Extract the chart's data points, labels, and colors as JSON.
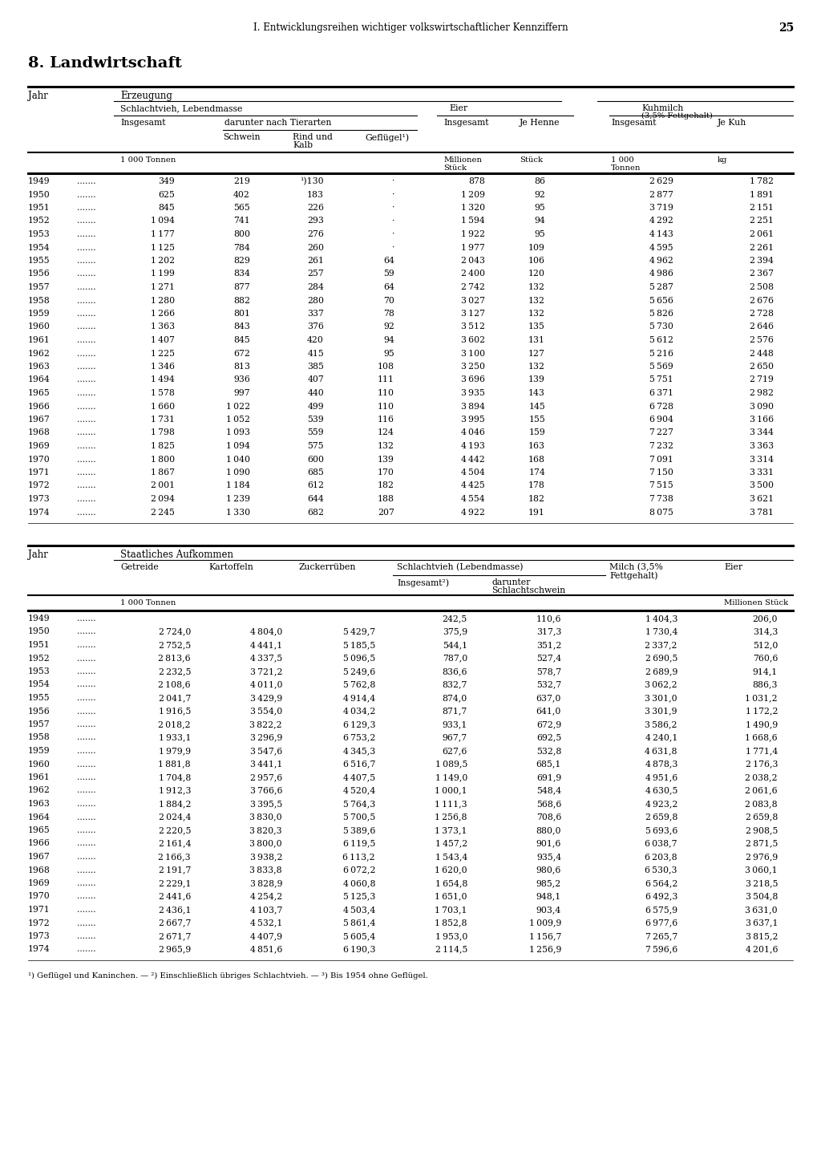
{
  "page_header": "I. Entwicklungsreihen wichtiger volkswirtschaftlicher Kennziffern",
  "page_number": "25",
  "section_title": "8. Landwirtschaft",
  "table1_data": [
    [
      1949,
      349,
      219,
      "¹)130",
      "·",
      878,
      86,
      2629,
      1782
    ],
    [
      1950,
      625,
      402,
      183,
      "·",
      1209,
      92,
      2877,
      1891
    ],
    [
      1951,
      845,
      565,
      226,
      "·",
      1320,
      95,
      3719,
      2151
    ],
    [
      1952,
      1094,
      741,
      293,
      "·",
      1594,
      94,
      4292,
      2251
    ],
    [
      1953,
      1177,
      800,
      276,
      "·",
      1922,
      95,
      4143,
      2061
    ],
    [
      1954,
      1125,
      784,
      260,
      "·",
      1977,
      109,
      4595,
      2261
    ],
    [
      1955,
      1202,
      829,
      261,
      64,
      2043,
      106,
      4962,
      2394
    ],
    [
      1956,
      1199,
      834,
      257,
      59,
      2400,
      120,
      4986,
      2367
    ],
    [
      1957,
      1271,
      877,
      284,
      64,
      2742,
      132,
      5287,
      2508
    ],
    [
      1958,
      1280,
      882,
      280,
      70,
      3027,
      132,
      5656,
      2676
    ],
    [
      1959,
      1266,
      801,
      337,
      78,
      3127,
      132,
      5826,
      2728
    ],
    [
      1960,
      1363,
      843,
      376,
      92,
      3512,
      135,
      5730,
      2646
    ],
    [
      1961,
      1407,
      845,
      420,
      94,
      3602,
      131,
      5612,
      2576
    ],
    [
      1962,
      1225,
      672,
      415,
      95,
      3100,
      127,
      5216,
      2448
    ],
    [
      1963,
      1346,
      813,
      385,
      108,
      3250,
      132,
      5569,
      2650
    ],
    [
      1964,
      1494,
      936,
      407,
      111,
      3696,
      139,
      5751,
      2719
    ],
    [
      1965,
      1578,
      997,
      440,
      110,
      3935,
      143,
      6371,
      2982
    ],
    [
      1966,
      1660,
      1022,
      499,
      110,
      3894,
      145,
      6728,
      3090
    ],
    [
      1967,
      1731,
      1052,
      539,
      116,
      3995,
      155,
      6904,
      3166
    ],
    [
      1968,
      1798,
      1093,
      559,
      124,
      4046,
      159,
      7227,
      3344
    ],
    [
      1969,
      1825,
      1094,
      575,
      132,
      4193,
      163,
      7232,
      3363
    ],
    [
      1970,
      1800,
      1040,
      600,
      139,
      4442,
      168,
      7091,
      3314
    ],
    [
      1971,
      1867,
      1090,
      685,
      170,
      4504,
      174,
      7150,
      3331
    ],
    [
      1972,
      2001,
      1184,
      612,
      182,
      4425,
      178,
      7515,
      3500
    ],
    [
      1973,
      2094,
      1239,
      644,
      188,
      4554,
      182,
      7738,
      3621
    ],
    [
      1974,
      2245,
      1330,
      682,
      207,
      4922,
      191,
      8075,
      3781
    ]
  ],
  "table2_data": [
    [
      1949,
      "",
      "",
      "",
      242.5,
      110.6,
      1404.3,
      206.0
    ],
    [
      1950,
      2724.0,
      4804.0,
      5429.7,
      375.9,
      317.3,
      1730.4,
      314.3
    ],
    [
      1951,
      2752.5,
      4441.1,
      5185.5,
      544.1,
      351.2,
      2337.2,
      512.0
    ],
    [
      1952,
      2813.6,
      4337.5,
      5096.5,
      787.0,
      527.4,
      2690.5,
      760.6
    ],
    [
      1953,
      2232.5,
      3721.2,
      5249.6,
      836.6,
      578.7,
      2689.9,
      914.1
    ],
    [
      1954,
      2108.6,
      4011.0,
      5762.8,
      832.7,
      532.7,
      3062.2,
      886.3
    ],
    [
      1955,
      2041.7,
      3429.9,
      4914.4,
      874.0,
      637.0,
      3301.0,
      1031.2
    ],
    [
      1956,
      1916.5,
      3554.0,
      4034.2,
      871.7,
      641.0,
      3301.9,
      1172.2
    ],
    [
      1957,
      2018.2,
      3822.2,
      6129.3,
      933.1,
      672.9,
      3586.2,
      1490.9
    ],
    [
      1958,
      1933.1,
      3296.9,
      6753.2,
      967.7,
      692.5,
      4240.1,
      1668.6
    ],
    [
      1959,
      1979.9,
      3547.6,
      4345.3,
      627.6,
      532.8,
      4631.8,
      1771.4
    ],
    [
      1960,
      1881.8,
      3441.1,
      6516.7,
      1089.5,
      685.1,
      4878.3,
      2176.3
    ],
    [
      1961,
      1704.8,
      2957.6,
      4407.5,
      1149.0,
      691.9,
      4951.6,
      2038.2
    ],
    [
      1962,
      1912.3,
      3766.6,
      4520.4,
      1000.1,
      548.4,
      4630.5,
      2061.6
    ],
    [
      1963,
      1884.2,
      3395.5,
      5764.3,
      1111.3,
      568.6,
      4923.2,
      2083.8
    ],
    [
      1964,
      2024.4,
      3830.0,
      5700.5,
      1256.8,
      708.6,
      2659.8,
      2659.8
    ],
    [
      1965,
      2220.5,
      3820.3,
      5389.6,
      1373.1,
      880.0,
      5693.6,
      2908.5
    ],
    [
      1966,
      2161.4,
      3800.0,
      6119.5,
      1457.2,
      901.6,
      6038.7,
      2871.5
    ],
    [
      1967,
      2166.3,
      3938.2,
      6113.2,
      1543.4,
      935.4,
      6203.8,
      2976.9
    ],
    [
      1968,
      2191.7,
      3833.8,
      6072.2,
      1620.0,
      980.6,
      6530.3,
      3060.1
    ],
    [
      1969,
      2229.1,
      3828.9,
      4060.8,
      1654.8,
      985.2,
      6564.2,
      3218.5
    ],
    [
      1970,
      2441.6,
      4254.2,
      5125.3,
      1651.0,
      948.1,
      6492.3,
      3504.8
    ],
    [
      1971,
      2436.1,
      4103.7,
      4503.4,
      1703.1,
      903.4,
      6575.9,
      3631.0
    ],
    [
      1972,
      2667.7,
      4532.1,
      5861.4,
      1852.8,
      1009.9,
      6977.6,
      3637.1
    ],
    [
      1973,
      2671.7,
      4407.9,
      5605.4,
      1953.0,
      1156.7,
      7265.7,
      3815.2
    ],
    [
      1974,
      2965.9,
      4851.6,
      6190.3,
      2114.5,
      1256.9,
      7596.6,
      4201.6
    ]
  ],
  "footnote": "¹) Geflügel und Kaninchen. — ²) Einschließlich übriges Schlachtvieh. — ³) Bis 1954 ohne Geflügel.",
  "bg_color": "#ffffff"
}
